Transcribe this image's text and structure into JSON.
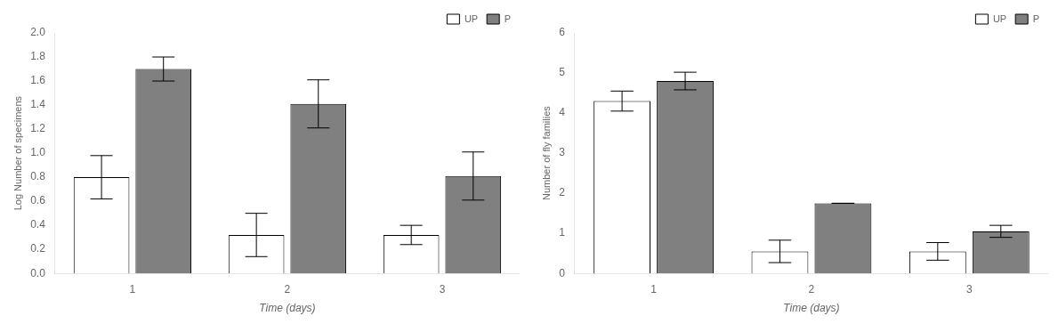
{
  "chart_data": [
    {
      "type": "bar",
      "xlabel": "Time (days)",
      "ylabel": "Log Number of specimens",
      "categories": [
        "1",
        "2",
        "3"
      ],
      "series": [
        {
          "name": "UP",
          "color": "#ffffff",
          "values": [
            0.8,
            0.32,
            0.32
          ],
          "errors": [
            0.18,
            0.18,
            0.08
          ]
        },
        {
          "name": "P",
          "color": "#808080",
          "values": [
            1.7,
            1.41,
            0.81
          ],
          "errors": [
            0.1,
            0.2,
            0.2
          ]
        }
      ],
      "ylim": [
        0,
        2.0
      ],
      "yticks": [
        {
          "value": 0,
          "label": "0.0"
        },
        0.2,
        0.4,
        0.6,
        0.8,
        {
          "value": 1.0,
          "label": "1.0"
        },
        1.2,
        1.4,
        1.6,
        1.8,
        {
          "value": 2.0,
          "label": "2.0"
        }
      ],
      "grid": false,
      "legend": "upper right"
    },
    {
      "type": "bar",
      "xlabel": "Time (days)",
      "ylabel": "Number of fly families",
      "categories": [
        "1",
        "2",
        "3"
      ],
      "series": [
        {
          "name": "UP",
          "color": "#ffffff",
          "values": [
            4.3,
            0.55,
            0.55
          ],
          "errors": [
            0.25,
            0.28,
            0.22
          ]
        },
        {
          "name": "P",
          "color": "#808080",
          "values": [
            4.8,
            1.75,
            1.05
          ],
          "errors": [
            0.22,
            0.0,
            0.15
          ]
        }
      ],
      "ylim": [
        0,
        6
      ],
      "yticks": [
        0,
        1,
        2,
        3,
        4,
        5,
        6
      ],
      "grid": false,
      "legend": "upper right"
    }
  ]
}
